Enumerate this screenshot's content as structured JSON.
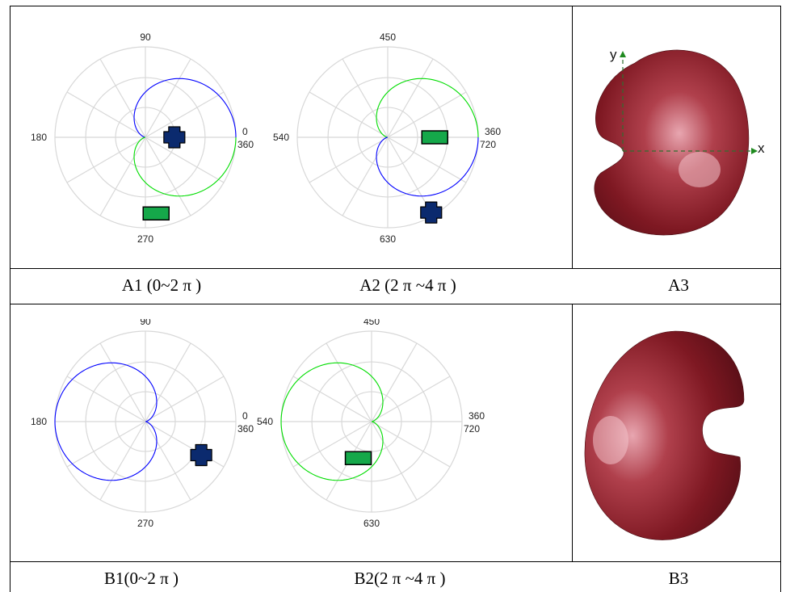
{
  "rows": [
    {
      "id": "A",
      "captions": [
        "A1 (0~2 π )",
        "A2 (2 π ~4 π )",
        "A3"
      ],
      "plots": [
        {
          "id": "A1",
          "tick_labels": {
            "top": "90",
            "left": "180",
            "right_top": "0",
            "right_bottom": "360",
            "bottom": "270"
          },
          "curve_segments": [
            {
              "from_deg": 0,
              "to_deg": 180,
              "color": "#0000ff"
            },
            {
              "from_deg": 180,
              "to_deg": 360,
              "color": "#00dd00"
            }
          ],
          "markers": [
            {
              "shape": "cross",
              "color": "#0b2a6e",
              "angle_deg": 0,
              "radius_frac": 0.32
            },
            {
              "shape": "rect",
              "color": "#15a84a",
              "angle_deg": 278,
              "radius_frac": 0.85
            }
          ]
        },
        {
          "id": "A2",
          "tick_labels": {
            "top": "450",
            "left": "540",
            "right_top": "360",
            "right_bottom": "720",
            "bottom": "630"
          },
          "curve_segments": [
            {
              "from_deg": 0,
              "to_deg": 180,
              "color": "#00dd00"
            },
            {
              "from_deg": 180,
              "to_deg": 360,
              "color": "#0000ff"
            }
          ],
          "markers": [
            {
              "shape": "rect",
              "color": "#15a84a",
              "angle_deg": 0,
              "radius_frac": 0.52
            },
            {
              "shape": "cross",
              "color": "#0b2a6e",
              "angle_deg": 300,
              "radius_frac": 0.96
            }
          ]
        }
      ],
      "render": {
        "label": "",
        "axes": {
          "x": "x",
          "y": "y"
        },
        "notch_side": "left"
      }
    },
    {
      "id": "B",
      "captions": [
        "B1(0~2 π )",
        "B2(2 π ~4 π )",
        "B3"
      ],
      "plots": [
        {
          "id": "B1",
          "tick_labels": {
            "top": "90",
            "left": "180",
            "right_top": "0",
            "right_bottom": "360",
            "bottom": "270"
          },
          "curve_segments": [
            {
              "from_deg": 0,
              "to_deg": 360,
              "color": "#0000ff"
            }
          ],
          "markers": [
            {
              "shape": "cross",
              "color": "#0b2a6e",
              "angle_deg": 211,
              "radius_frac": 0.72
            }
          ]
        },
        {
          "id": "B2",
          "tick_labels": {
            "top": "450",
            "left": "540",
            "right_top": "360",
            "right_bottom": "720",
            "bottom": "630"
          },
          "curve_segments": [
            {
              "from_deg": 0,
              "to_deg": 360,
              "color": "#00dd00"
            }
          ],
          "markers": [
            {
              "shape": "rect",
              "color": "#15a84a",
              "angle_deg": 290,
              "radius_frac": 0.43
            }
          ]
        }
      ],
      "render": {
        "label": "",
        "axes": null,
        "notch_side": "right"
      }
    }
  ]
}
